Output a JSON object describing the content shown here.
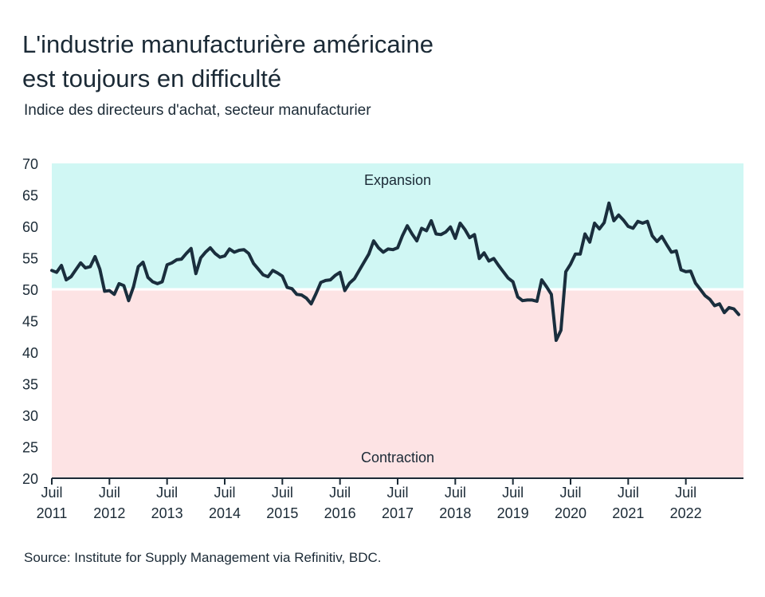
{
  "title_line1": "L'industrie manufacturière américaine",
  "title_line2": "est toujours en difficulté",
  "subtitle": "Indice des directeurs d'achat, secteur manufacturier",
  "source": "Source: Institute for Supply Management via Refinitiv, BDC.",
  "colors": {
    "line": "#1a2e3d",
    "expansion": "#d0f7f4",
    "contraction": "#fde3e4",
    "threshold": "#ffffff"
  },
  "chart_data": {
    "type": "line",
    "title": "L'industrie manufacturière américaine est toujours en difficulté",
    "subtitle": "Indice des directeurs d'achat, secteur manufacturier",
    "xlabel": "",
    "ylabel": "",
    "ylim": [
      20,
      70
    ],
    "xlim": [
      "2011-07",
      "2023-07"
    ],
    "yticks": [
      "20",
      "25",
      "30",
      "35",
      "40",
      "45",
      "50",
      "55",
      "60",
      "65",
      "70"
    ],
    "xticks": [
      {
        "month": "Juil",
        "year": "2011",
        "date": "2011-07"
      },
      {
        "month": "Juil",
        "year": "2012",
        "date": "2012-07"
      },
      {
        "month": "Juil",
        "year": "2013",
        "date": "2013-07"
      },
      {
        "month": "Juil",
        "year": "2014",
        "date": "2014-07"
      },
      {
        "month": "Juil",
        "year": "2015",
        "date": "2015-07"
      },
      {
        "month": "Juil",
        "year": "2016",
        "date": "2016-07"
      },
      {
        "month": "Juil",
        "year": "2017",
        "date": "2017-07"
      },
      {
        "month": "Juil",
        "year": "2018",
        "date": "2018-07"
      },
      {
        "month": "Juil",
        "year": "2019",
        "date": "2019-07"
      },
      {
        "month": "Juil",
        "year": "2020",
        "date": "2020-07"
      },
      {
        "month": "Juil",
        "year": "2021",
        "date": "2021-07"
      },
      {
        "month": "Juil",
        "year": "2022",
        "date": "2022-07"
      }
    ],
    "threshold": 50,
    "bands": [
      {
        "label": "Expansion",
        "from": 50,
        "to": 70
      },
      {
        "label": "Contraction",
        "from": 20,
        "to": 50
      }
    ],
    "grid": false,
    "frequency": "monthly",
    "x_first": "2011-07",
    "x_last": "2023-06",
    "values": [
      53.0,
      52.7,
      53.8,
      51.5,
      52.0,
      53.1,
      54.2,
      53.4,
      53.6,
      55.2,
      53.2,
      49.7,
      49.8,
      49.2,
      50.9,
      50.6,
      48.2,
      50.4,
      53.6,
      54.3,
      51.9,
      51.2,
      50.9,
      51.2,
      53.9,
      54.2,
      54.7,
      54.8,
      55.7,
      56.5,
      52.5,
      55.0,
      55.9,
      56.6,
      55.7,
      55.1,
      55.3,
      56.4,
      55.9,
      56.2,
      56.3,
      55.7,
      54.1,
      53.2,
      52.3,
      52.0,
      53.0,
      52.6,
      52.1,
      50.3,
      50.1,
      49.2,
      49.1,
      48.6,
      47.7,
      49.3,
      51.1,
      51.4,
      51.5,
      52.2,
      52.7,
      49.8,
      51.0,
      51.7,
      53.0,
      54.3,
      55.6,
      57.7,
      56.6,
      55.9,
      56.4,
      56.3,
      56.6,
      58.5,
      60.1,
      58.8,
      57.7,
      59.7,
      59.3,
      60.9,
      58.8,
      58.7,
      59.1,
      59.9,
      58.1,
      60.5,
      59.5,
      58.2,
      58.7,
      54.9,
      55.8,
      54.5,
      54.9,
      53.8,
      52.8,
      51.8,
      51.2,
      48.8,
      48.2,
      48.3,
      48.3,
      48.1,
      51.5,
      50.4,
      49.2,
      41.9,
      43.5,
      52.8,
      54.0,
      55.6,
      55.6,
      58.8,
      57.5,
      60.5,
      59.6,
      60.6,
      63.7,
      60.9,
      61.8,
      61.0,
      60.0,
      59.7,
      60.8,
      60.5,
      60.8,
      58.5,
      57.6,
      58.4,
      57.1,
      55.9,
      56.1,
      53.1,
      52.8,
      52.9,
      51.0,
      50.0,
      49.0,
      48.4,
      47.4,
      47.7,
      46.3,
      47.1,
      46.9,
      46.0
    ]
  }
}
